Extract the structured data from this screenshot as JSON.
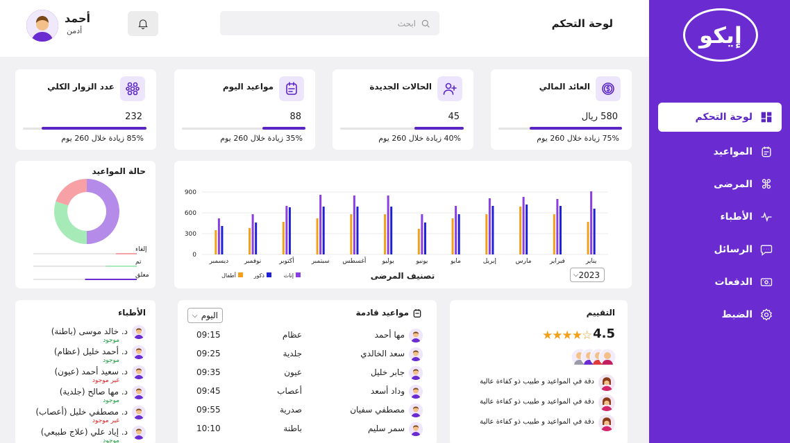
{
  "app": {
    "logo": "إيكو",
    "page_title": "لوحة التحكم"
  },
  "header": {
    "search_placeholder": "ابحث",
    "user_name": "أحمد",
    "user_role": "أدمن"
  },
  "sidebar": {
    "items": [
      {
        "label": "لوحة التحكم",
        "icon": "dashboard-icon",
        "active": true
      },
      {
        "label": "المواعيد",
        "icon": "calendar-icon"
      },
      {
        "label": "المرضى",
        "icon": "patients-icon"
      },
      {
        "label": "الأطباء",
        "icon": "pulse-icon"
      },
      {
        "label": "الرسائل",
        "icon": "message-icon"
      },
      {
        "label": "الدفعات",
        "icon": "payment-icon"
      },
      {
        "label": "الضبط",
        "icon": "gear-icon"
      }
    ]
  },
  "stats": [
    {
      "title": "العائد المالي",
      "value": "580 ريال",
      "note": "75% زيادة خلال 260 يوم",
      "progress": 0.75,
      "icon": "dollar-icon"
    },
    {
      "title": "الحالات الجديدة",
      "value": "45",
      "note": "40% زيادة خلال 260 يوم",
      "progress": 0.4,
      "icon": "add-user-icon"
    },
    {
      "title": "مواعيد اليوم",
      "value": "88",
      "note": "35% زيادة خلال 260 يوم",
      "progress": 0.35,
      "icon": "calendar-icon"
    },
    {
      "title": "عدد الزوار الكلي",
      "value": "232",
      "note": "85% زيادة خلال 260 يوم",
      "progress": 0.85,
      "icon": "visitors-icon"
    }
  ],
  "chart_data": [
    {
      "type": "bar",
      "xlabel": "تصنيف المرضى",
      "categories": [
        "يناير",
        "فبراير",
        "مارس",
        "إبريل",
        "مايو",
        "يونيو",
        "يوليو",
        "أغسطس",
        "سبتمبر",
        "أكتوبر",
        "نوفمبر",
        "ديسمبر"
      ],
      "series": [
        {
          "name": "إناث",
          "color": "#8a3fe0",
          "values": [
            910,
            800,
            830,
            810,
            700,
            580,
            850,
            850,
            860,
            700,
            580,
            520
          ]
        },
        {
          "name": "ذكور",
          "color": "#1f1fd6",
          "values": [
            660,
            700,
            720,
            700,
            580,
            460,
            690,
            690,
            690,
            680,
            460,
            410
          ]
        },
        {
          "name": "أطفال",
          "color": "#f2a01c",
          "values": [
            470,
            580,
            690,
            580,
            520,
            370,
            580,
            580,
            520,
            470,
            380,
            350
          ]
        }
      ],
      "yticks": [
        0,
        300,
        600,
        900
      ],
      "ylim": [
        0,
        1000
      ],
      "year_select": "2023"
    },
    {
      "type": "pie",
      "title": "حالة المواعيد",
      "slices": [
        {
          "label": "إلغاء",
          "value": 20,
          "color": "#f7a0a6"
        },
        {
          "label": "تم",
          "value": 30,
          "color": "#a6eab7"
        },
        {
          "label": "معلق",
          "value": 50,
          "color": "#b48be8"
        }
      ]
    }
  ],
  "doctors": {
    "title": "الأطباء",
    "items": [
      {
        "name": "د. خالد موسى  (باطنة)",
        "status": "موجود",
        "status_color": "#1b9c3b"
      },
      {
        "name": "د. أحمد خليل  (عظام)",
        "status": "موجود",
        "status_color": "#1b9c3b"
      },
      {
        "name": "د. سعيد أحمد  (عيون)",
        "status": "غير موجود",
        "status_color": "#e02424"
      },
      {
        "name": "د. مها صالح  (جلدية)",
        "status": "موجود",
        "status_color": "#1b9c3b"
      },
      {
        "name": "د. مصطفي خليل  (أعصاب)",
        "status": "غير موجود",
        "status_color": "#e02424"
      },
      {
        "name": "د. إياد علي  (علاج طبيعي)",
        "status": "موجود",
        "status_color": "#1b9c3b"
      }
    ]
  },
  "appointments": {
    "title": "مواعيد قادمة",
    "filter": "اليوم",
    "rows": [
      {
        "patient": "مها أحمد",
        "dept": "عظام",
        "time": "09:15"
      },
      {
        "patient": "سعد الخالدي",
        "dept": "جلدية",
        "time": "09:25"
      },
      {
        "patient": "جابر خليل",
        "dept": "عيون",
        "time": "09:35"
      },
      {
        "patient": "وداد أسعد",
        "dept": "أعصاب",
        "time": "09:45"
      },
      {
        "patient": "مصطفي سفيان",
        "dept": "صدرية",
        "time": "09:55"
      },
      {
        "patient": "سمر سليم",
        "dept": "باطنة",
        "time": "10:10"
      }
    ]
  },
  "rating": {
    "title": "التقييم",
    "value": "4.5",
    "stars": 4.5,
    "reviews": [
      "دقة في المواعيد و طبيب ذو كفاءة عالية",
      "دقة في المواعيد و طبيب ذو كفاءة عالية",
      "دقة في المواعيد و طبيب ذو كفاءة عالية"
    ]
  }
}
